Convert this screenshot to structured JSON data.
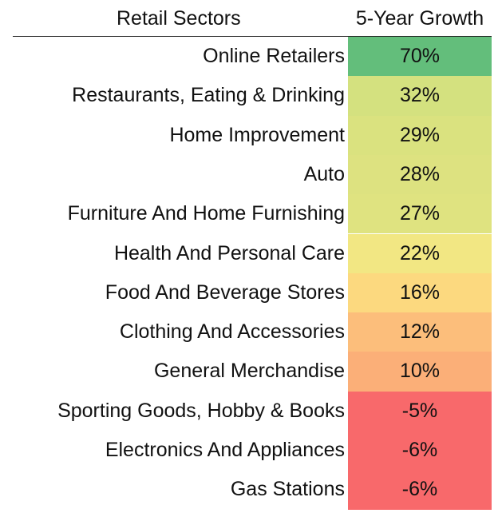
{
  "headers": {
    "sector": "Retail Sectors",
    "growth": "5-Year Growth"
  },
  "chart_data": {
    "type": "table",
    "columns": [
      "Retail Sectors",
      "5-Year Growth"
    ],
    "rows": [
      {
        "sector": "Online Retailers",
        "growth_label": "70%",
        "growth": 70,
        "color": "#63be7b"
      },
      {
        "sector": "Restaurants, Eating & Drinking",
        "growth_label": "32%",
        "growth": 32,
        "color": "#d4e17f"
      },
      {
        "sector": "Home Improvement",
        "growth_label": "29%",
        "growth": 29,
        "color": "#dae27f"
      },
      {
        "sector": "Auto",
        "growth_label": "28%",
        "growth": 28,
        "color": "#dde280"
      },
      {
        "sector": "Furniture And Home Furnishing",
        "growth_label": "27%",
        "growth": 27,
        "color": "#dfe380"
      },
      {
        "sector": "Health And Personal Care",
        "growth_label": "22%",
        "growth": 22,
        "color": "#f2e783"
      },
      {
        "sector": "Food And Beverage Stores",
        "growth_label": "16%",
        "growth": 16,
        "color": "#fcd97f"
      },
      {
        "sector": "Clothing And Accessories",
        "growth_label": "12%",
        "growth": 12,
        "color": "#fcbe7b"
      },
      {
        "sector": "General Merchandise",
        "growth_label": "10%",
        "growth": 10,
        "color": "#fbaf78"
      },
      {
        "sector": "Sporting Goods, Hobby & Books",
        "growth_label": "-5%",
        "growth": -5,
        "color": "#f8696b"
      },
      {
        "sector": "Electronics And Appliances",
        "growth_label": "-6%",
        "growth": -6,
        "color": "#f8696b"
      },
      {
        "sector": "Gas Stations",
        "growth_label": "-6%",
        "growth": -6,
        "color": "#f8696b"
      }
    ]
  }
}
